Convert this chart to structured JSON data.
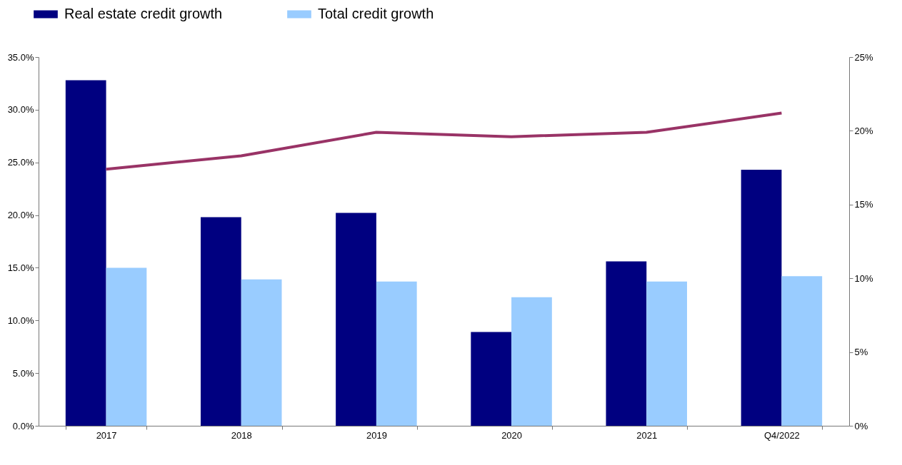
{
  "chart_data": {
    "type": "bar",
    "categories": [
      "2017",
      "2018",
      "2019",
      "2020",
      "2021",
      "Q4/2022"
    ],
    "series": [
      {
        "name": "Real estate credit growth",
        "color": "#000080",
        "values": [
          32.8,
          19.8,
          20.2,
          8.9,
          15.6,
          24.3
        ]
      },
      {
        "name": "Total credit growth",
        "color": "#99ccff",
        "values": [
          15.0,
          13.9,
          13.7,
          12.2,
          13.7,
          14.2
        ]
      },
      {
        "type": "line",
        "axis": "y2",
        "color": "#993366",
        "values": [
          17.4,
          18.3,
          19.9,
          19.6,
          19.9,
          21.2
        ]
      }
    ],
    "ylim": [
      0,
      35
    ],
    "yticks": [
      {
        "value": 0,
        "label": "0.0%"
      },
      {
        "value": 5,
        "label": "5.0%"
      },
      {
        "value": 10,
        "label": "10.0%"
      },
      {
        "value": 15,
        "label": "15.0%"
      },
      {
        "value": 20,
        "label": "20.0%"
      },
      {
        "value": 25,
        "label": "25.0%"
      },
      {
        "value": 30,
        "label": "30.0%"
      },
      {
        "value": 35,
        "label": "35.0%"
      }
    ],
    "y2lim": [
      0,
      25
    ],
    "y2ticks": [
      {
        "value": 0,
        "label": "0%"
      },
      {
        "value": 5,
        "label": "5%"
      },
      {
        "value": 10,
        "label": "10%"
      },
      {
        "value": 15,
        "label": "15%"
      },
      {
        "value": 20,
        "label": "20%"
      },
      {
        "value": 25,
        "label": "25%"
      }
    ],
    "legend": "top",
    "grid": false,
    "marker": "none",
    "line_style": "solid"
  }
}
